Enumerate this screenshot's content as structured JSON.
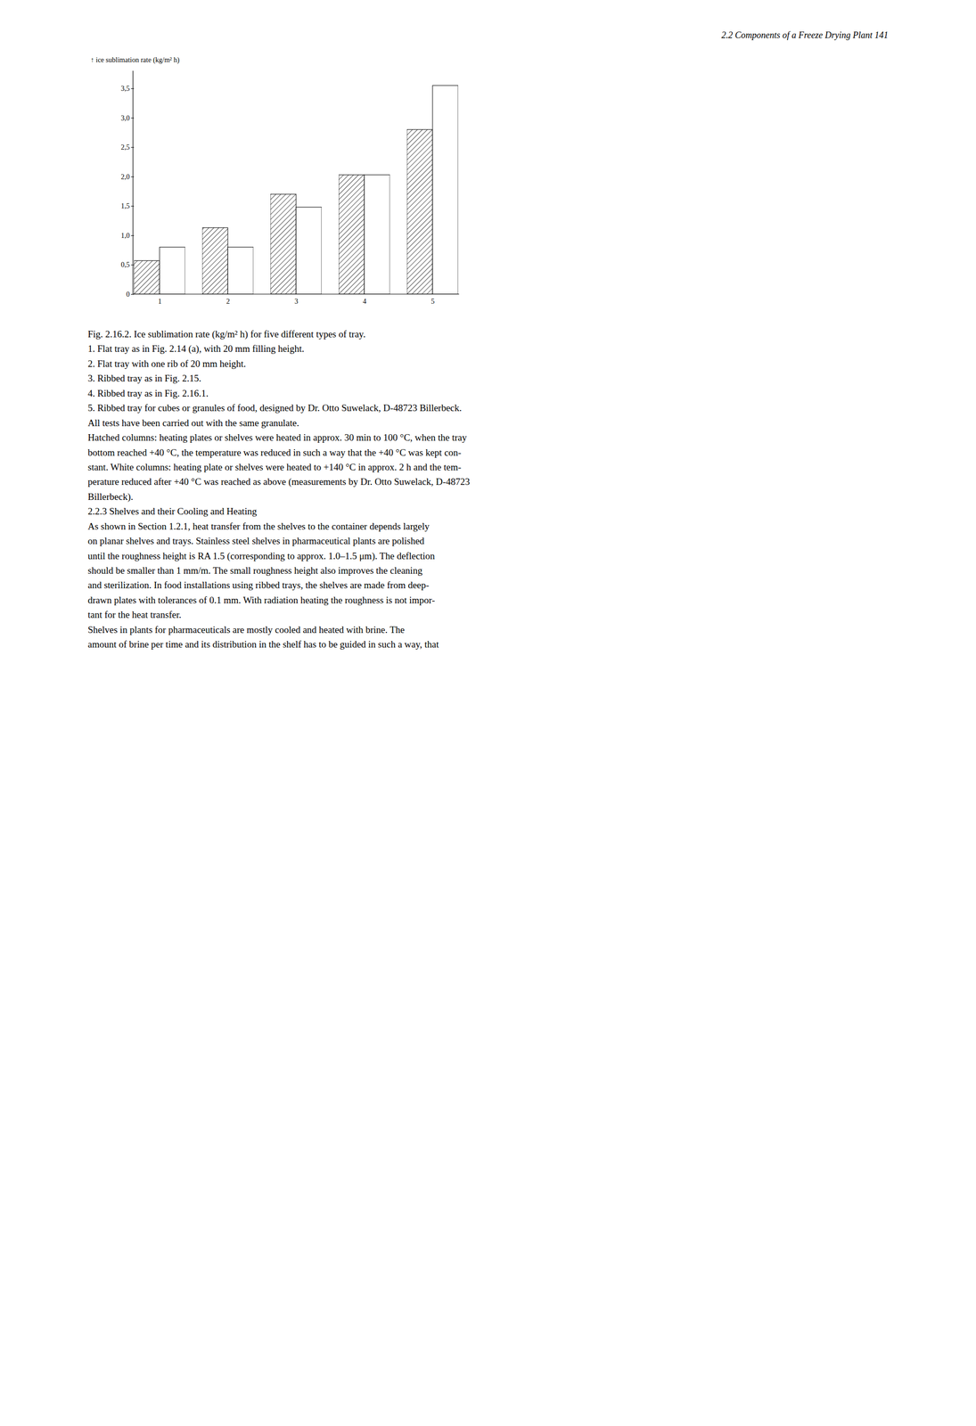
{
  "chart_data": {
    "type": "bar",
    "categories": [
      1,
      2,
      3,
      4,
      5
    ],
    "series": [
      {
        "color": "#ffffff",
        "values": [
          0.57,
          1.13,
          1.7,
          2.03,
          2.8
        ]
      },
      {
        "color": "#ffffff",
        "values": [
          0.8,
          0.8,
          1.48,
          2.03,
          3.55
        ]
      }
    ],
    "ylabel": "ice sublimation rate (kg/m² h)",
    "ylim": [
      0,
      3.8
    ],
    "yticks": [
      0,
      {
        "value": 0.5,
        "label": "0,5"
      },
      {
        "value": 1.0,
        "label": "1,0"
      },
      {
        "value": 1.5,
        "label": "1,5"
      },
      {
        "value": 2.0,
        "label": "2,0"
      },
      {
        "value": 2.5,
        "label": "2,5"
      },
      {
        "value": 3.0,
        "label": "3,0"
      },
      {
        "value": 3.5,
        "label": "3,5"
      }
    ],
    "annotations": [
      "2.2  Components of a Freeze Drying Plant    141",
      "Fig. 2.16.2. Ice sublimation rate (kg/m² h) for five different types of tray.",
      "1. Flat tray as in Fig. 2.14 (a), with 20 mm filling height.",
      "2. Flat tray with one rib of 20 mm height.",
      "3. Ribbed tray as in Fig. 2.15.",
      "4. Ribbed tray as in Fig. 2.16.1.",
      "5. Ribbed tray for cubes or granules of food, designed by Dr. Otto Suwelack, D-48723 Billerbeck.",
      "All tests have been carried out with the same granulate.",
      "Hatched columns: heating plates or shelves were heated in approx. 30 min to 100 °C, when the tray",
      "bottom reached +40 °C, the temperature was reduced in such a way that the +40 °C was kept con-",
      "stant. White columns: heating plate or shelves were heated to +140 °C in approx. 2 h and the tem-",
      "perature reduced after +40 °C was reached as above (measurements by Dr. Otto Suwelack, D-48723",
      "Billerbeck).",
      "2.2.3  Shelves and their Cooling and Heating",
      "As shown in Section 1.2.1, heat transfer from the shelves to the container depends largely",
      "on planar shelves and trays. Stainless steel shelves in pharmaceutical plants are polished",
      "until the roughness height is RA 1.5 (corresponding to approx. 1.0–1.5 μm). The deflection",
      "should be smaller than 1 mm/m. The small roughness height also improves the cleaning",
      "and sterilization. In food installations using ribbed trays, the shelves are made from deep-",
      "drawn plates with tolerances of 0.1 mm. With radiation heating the roughness is not impor-",
      "tant for the heat transfer.",
      "Shelves in plants for pharmaceuticals are mostly cooled and heated with brine. The",
      "amount of brine per time and its distribution in the shelf has to be guided in such a way, that"
    ]
  }
}
